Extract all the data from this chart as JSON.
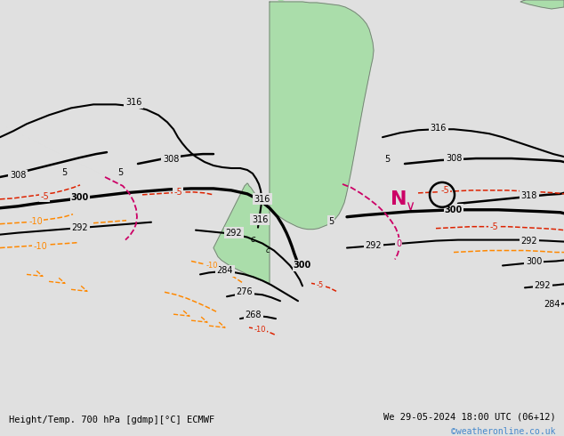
{
  "title_left": "Height/Temp. 700 hPa [gdmp][°C] ECMWF",
  "title_right": "We 29-05-2024 18:00 UTC (06+12)",
  "copyright": "©weatheronline.co.uk",
  "bg_color": "#e0e0e0",
  "land_color": "#aaddaa",
  "border_color": "#777777",
  "fig_width": 6.34,
  "fig_height": 4.9,
  "dpi": 100,
  "bottom_bar_color": "#d8d8d8",
  "bottom_bar_height": 0.06,
  "xlim": [
    0,
    634
  ],
  "ylim": [
    0,
    463
  ]
}
